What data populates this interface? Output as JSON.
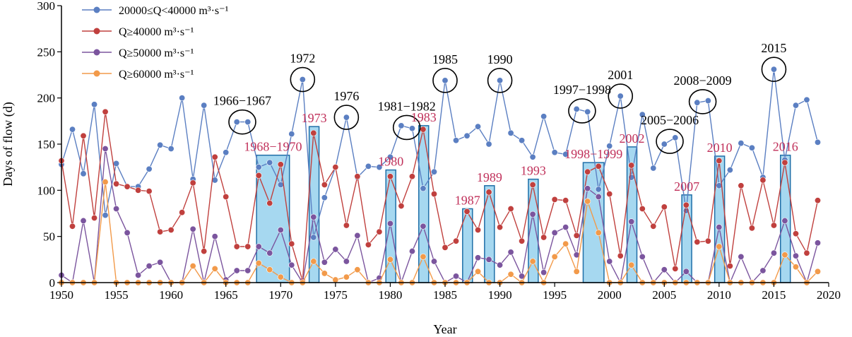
{
  "chart_data": {
    "type": "line",
    "xlabel": "Year",
    "ylabel": "Days of flow (d)",
    "xlim": [
      1950,
      2020
    ],
    "ylim": [
      0,
      300
    ],
    "xticks": [
      1950,
      1955,
      1960,
      1965,
      1970,
      1975,
      1980,
      1985,
      1990,
      1995,
      2000,
      2005,
      2010,
      2015,
      2020
    ],
    "yticks": [
      0,
      50,
      100,
      150,
      200,
      250,
      300
    ],
    "legend_position": "top-left",
    "grid": false,
    "x": [
      1950,
      1951,
      1952,
      1953,
      1954,
      1955,
      1956,
      1957,
      1958,
      1959,
      1960,
      1961,
      1962,
      1963,
      1964,
      1965,
      1966,
      1967,
      1968,
      1969,
      1970,
      1971,
      1972,
      1973,
      1974,
      1975,
      1976,
      1977,
      1978,
      1979,
      1980,
      1981,
      1982,
      1983,
      1984,
      1985,
      1986,
      1987,
      1988,
      1989,
      1990,
      1991,
      1992,
      1993,
      1994,
      1995,
      1996,
      1997,
      1998,
      1999,
      2000,
      2001,
      2002,
      2003,
      2004,
      2005,
      2006,
      2007,
      2008,
      2009,
      2010,
      2011,
      2012,
      2013,
      2014,
      2015,
      2016,
      2017,
      2018,
      2019
    ],
    "series": [
      {
        "name": "20000≤Q<40000 m³·s⁻¹",
        "color": "#5b7fc2",
        "values": [
          128,
          166,
          118,
          193,
          73,
          129,
          104,
          104,
          123,
          149,
          145,
          200,
          112,
          192,
          111,
          141,
          174,
          174,
          125,
          130,
          106,
          161,
          220,
          49,
          92,
          125,
          179,
          114,
          126,
          125,
          136,
          170,
          167,
          102,
          120,
          219,
          154,
          159,
          169,
          150,
          219,
          162,
          154,
          136,
          180,
          141,
          139,
          188,
          185,
          101,
          148,
          202,
          114,
          182,
          124,
          150,
          157,
          78,
          195,
          197,
          105,
          122,
          151,
          146,
          114,
          231,
          133,
          192,
          198,
          152
        ]
      },
      {
        "name": "Q≥40000 m³·s⁻¹",
        "color": "#c0403e",
        "values": [
          132,
          61,
          159,
          70,
          185,
          107,
          104,
          100,
          99,
          55,
          57,
          76,
          108,
          34,
          136,
          93,
          39,
          39,
          116,
          86,
          128,
          42,
          2,
          162,
          106,
          125,
          62,
          115,
          41,
          55,
          115,
          83,
          115,
          166,
          96,
          38,
          45,
          77,
          57,
          98,
          60,
          80,
          45,
          106,
          49,
          90,
          89,
          51,
          120,
          126,
          96,
          29,
          127,
          80,
          61,
          82,
          15,
          84,
          44,
          45,
          132,
          18,
          105,
          59,
          111,
          62,
          130,
          53,
          32,
          89
        ]
      },
      {
        "name": "Q≥50000 m³·s⁻¹",
        "color": "#7b559e",
        "values": [
          8,
          0,
          67,
          0,
          145,
          80,
          54,
          8,
          18,
          22,
          0,
          0,
          58,
          0,
          50,
          3,
          13,
          13,
          39,
          32,
          57,
          19,
          0,
          71,
          22,
          36,
          23,
          51,
          0,
          5,
          64,
          0,
          34,
          61,
          23,
          0,
          7,
          0,
          27,
          25,
          19,
          33,
          7,
          74,
          11,
          54,
          60,
          30,
          102,
          93,
          23,
          0,
          66,
          28,
          0,
          14,
          0,
          12,
          0,
          0,
          60,
          0,
          28,
          0,
          13,
          32,
          67,
          29,
          0,
          43
        ]
      },
      {
        "name": "Q≥60000 m³·s⁻¹",
        "color": "#f29a4a",
        "values": [
          0,
          0,
          0,
          0,
          109,
          0,
          0,
          0,
          0,
          0,
          0,
          0,
          18,
          0,
          15,
          0,
          0,
          0,
          21,
          14,
          6,
          0,
          0,
          23,
          10,
          3,
          6,
          14,
          0,
          0,
          25,
          0,
          0,
          28,
          0,
          0,
          0,
          0,
          12,
          0,
          0,
          9,
          0,
          23,
          0,
          28,
          42,
          12,
          88,
          54,
          0,
          0,
          19,
          0,
          0,
          0,
          0,
          0,
          0,
          0,
          39,
          0,
          0,
          0,
          0,
          0,
          30,
          17,
          0,
          12
        ]
      }
    ],
    "bars": [
      {
        "from": 1967.8,
        "to": 1970.8,
        "value": 138,
        "label": "1968−1970"
      },
      {
        "from": 1972.6,
        "to": 1973.5,
        "value": 169,
        "label": "1973"
      },
      {
        "from": 1979.6,
        "to": 1980.5,
        "value": 122,
        "label": "1980"
      },
      {
        "from": 1982.6,
        "to": 1983.5,
        "value": 170,
        "label": "1983"
      },
      {
        "from": 1986.6,
        "to": 1987.5,
        "value": 80,
        "label": "1987"
      },
      {
        "from": 1988.6,
        "to": 1989.5,
        "value": 105,
        "label": "1989"
      },
      {
        "from": 1992.6,
        "to": 1993.5,
        "value": 112,
        "label": "1993"
      },
      {
        "from": 1997.6,
        "to": 1999.5,
        "value": 130,
        "label": "1998−1999"
      },
      {
        "from": 2001.6,
        "to": 2002.5,
        "value": 147,
        "label": "2002"
      },
      {
        "from": 2006.6,
        "to": 2007.5,
        "value": 95,
        "label": "2007"
      },
      {
        "from": 2009.6,
        "to": 2010.5,
        "value": 137,
        "label": "2010"
      },
      {
        "from": 2015.6,
        "to": 2016.5,
        "value": 138,
        "label": "2016"
      }
    ],
    "bar_color": "#a6d8f0",
    "bar_edge_color": "#1f6fa8",
    "bar_label_color": "#c0305a",
    "circled_annotations": [
      {
        "label": "1966−1967",
        "cx": 1966.5,
        "cy": 174
      },
      {
        "label": "1972",
        "cx": 1972,
        "cy": 220
      },
      {
        "label": "1976",
        "cx": 1976,
        "cy": 179
      },
      {
        "label": "1981−1982",
        "cx": 1981.5,
        "cy": 168
      },
      {
        "label": "1985",
        "cx": 1985,
        "cy": 219
      },
      {
        "label": "1990",
        "cx": 1990,
        "cy": 219
      },
      {
        "label": "1997−1998",
        "cx": 1997.5,
        "cy": 186
      },
      {
        "label": "2001",
        "cx": 2001,
        "cy": 202
      },
      {
        "label": "2005−2006",
        "cx": 2005.5,
        "cy": 153
      },
      {
        "label": "2008−2009",
        "cx": 2008.5,
        "cy": 196
      },
      {
        "label": "2015",
        "cx": 2015,
        "cy": 231
      }
    ]
  }
}
